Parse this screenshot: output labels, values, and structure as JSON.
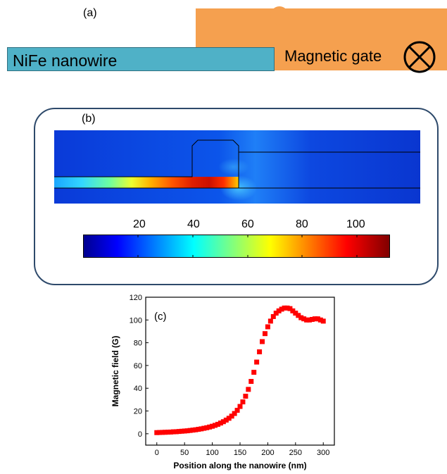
{
  "panel_a": {
    "label": "(a)",
    "nanowire_label": "NiFe  nanowire",
    "gate_label": "Magnetic gate",
    "gate_icon": "circle-cross-icon",
    "colors": {
      "nanowire": "#4fb1c7",
      "gate": "#f5a04f"
    }
  },
  "panel_b": {
    "label": "(b)",
    "colorbar_ticks": [
      "20",
      "40",
      "60",
      "80",
      "100"
    ],
    "colorbar_range": [
      0,
      112
    ],
    "colormap": "jet"
  },
  "chart_data": {
    "type": "scatter",
    "panel_label": "(c)",
    "xlabel": "Position along the nanowire (nm)",
    "ylabel": "Magnetic field (G)",
    "xlim": [
      -20,
      320
    ],
    "ylim": [
      -10,
      120
    ],
    "x_ticks": [
      "0",
      "50",
      "100",
      "150",
      "200",
      "250",
      "300"
    ],
    "y_ticks": [
      "0",
      "20",
      "40",
      "60",
      "80",
      "100",
      "120"
    ],
    "marker_color": "#ff0000",
    "marker": "square",
    "grid": false,
    "x": [
      0,
      5,
      10,
      15,
      20,
      25,
      30,
      35,
      40,
      45,
      50,
      55,
      60,
      65,
      70,
      75,
      80,
      85,
      90,
      95,
      100,
      105,
      110,
      115,
      120,
      125,
      130,
      135,
      140,
      145,
      150,
      155,
      160,
      165,
      170,
      175,
      180,
      185,
      190,
      195,
      200,
      205,
      210,
      215,
      220,
      225,
      230,
      235,
      240,
      245,
      250,
      255,
      260,
      265,
      270,
      275,
      280,
      285,
      290,
      295,
      300
    ],
    "y": [
      1,
      1.1,
      1.2,
      1.3,
      1.4,
      1.5,
      1.7,
      1.8,
      2,
      2.2,
      2.4,
      2.6,
      2.9,
      3.2,
      3.5,
      3.9,
      4.3,
      4.8,
      5.3,
      5.9,
      6.6,
      7.4,
      8.3,
      9.4,
      10.6,
      12,
      13.6,
      15.5,
      17.8,
      20.6,
      24,
      28,
      33,
      39,
      46,
      54,
      63,
      72,
      81,
      88,
      94,
      99,
      103,
      106,
      108,
      109.5,
      110.5,
      110.5,
      110,
      108,
      106,
      104,
      102,
      101,
      100,
      100,
      100.5,
      101,
      101,
      100,
      99
    ]
  }
}
